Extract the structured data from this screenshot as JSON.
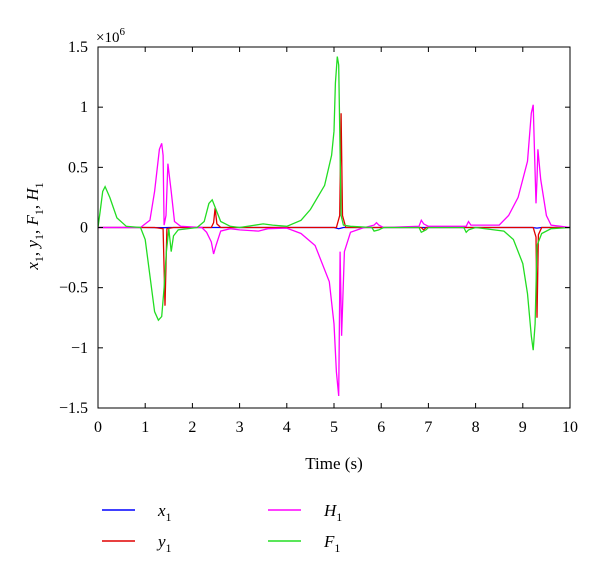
{
  "chart_data": {
    "type": "line",
    "xlabel": "Time (s)",
    "ylabel_parts": [
      {
        "base": "x",
        "sub": "1",
        "sep": ", "
      },
      {
        "base": "y",
        "sub": "1",
        "sep": ", "
      },
      {
        "base": "F",
        "sub": "1",
        "sep": ", "
      },
      {
        "base": "H",
        "sub": "1",
        "sep": ""
      }
    ],
    "scale_multiplier": {
      "base": "×10",
      "exp": "6"
    },
    "xlim": [
      0,
      10
    ],
    "ylim": [
      -1.5,
      1.5
    ],
    "xticks": [
      "0",
      "1",
      "2",
      "3",
      "4",
      "5",
      "6",
      "7",
      "8",
      "9",
      "10"
    ],
    "yticks": [
      "1.5",
      "1",
      "0.5",
      "0",
      "−0.5",
      "−1",
      "−1.5"
    ],
    "grid": false,
    "legend_position": "below-plot",
    "series": [
      {
        "name_base": "x",
        "name_sub": "1",
        "color": "#0000ff",
        "points": [
          [
            0,
            0
          ],
          [
            1,
            0
          ],
          [
            1.4,
            -0.002
          ],
          [
            1.5,
            0
          ],
          [
            2.5,
            0
          ],
          [
            5.0,
            0
          ],
          [
            5.1,
            -0.01
          ],
          [
            5.2,
            0
          ],
          [
            9.2,
            0
          ],
          [
            9.3,
            -0.005
          ],
          [
            9.4,
            0
          ],
          [
            10,
            0
          ]
        ]
      },
      {
        "name_base": "y",
        "name_sub": "1",
        "color": "#e00000",
        "points": [
          [
            0,
            0
          ],
          [
            1.2,
            0
          ],
          [
            1.38,
            -0.01
          ],
          [
            1.42,
            -0.65
          ],
          [
            1.46,
            -0.01
          ],
          [
            1.6,
            0
          ],
          [
            2.4,
            0
          ],
          [
            2.45,
            0.04
          ],
          [
            2.48,
            0.16
          ],
          [
            2.52,
            0.03
          ],
          [
            2.6,
            0
          ],
          [
            5.05,
            0
          ],
          [
            5.12,
            0.1
          ],
          [
            5.15,
            0.95
          ],
          [
            5.18,
            0.1
          ],
          [
            5.25,
            0
          ],
          [
            6.85,
            0
          ],
          [
            6.9,
            -0.02
          ],
          [
            6.95,
            0
          ],
          [
            9.22,
            0
          ],
          [
            9.28,
            -0.08
          ],
          [
            9.3,
            -0.75
          ],
          [
            9.33,
            -0.06
          ],
          [
            9.4,
            0
          ],
          [
            10,
            0
          ]
        ]
      },
      {
        "name_base": "H",
        "name_sub": "1",
        "color": "#ff00ff",
        "points": [
          [
            0,
            0
          ],
          [
            0.9,
            0
          ],
          [
            1.1,
            0.06
          ],
          [
            1.2,
            0.3
          ],
          [
            1.3,
            0.65
          ],
          [
            1.35,
            0.7
          ],
          [
            1.38,
            0.6
          ],
          [
            1.4,
            0.02
          ],
          [
            1.44,
            0.1
          ],
          [
            1.48,
            0.53
          ],
          [
            1.55,
            0.3
          ],
          [
            1.62,
            0.05
          ],
          [
            1.75,
            0.01
          ],
          [
            2.2,
            0
          ],
          [
            2.3,
            -0.04
          ],
          [
            2.4,
            -0.12
          ],
          [
            2.45,
            -0.22
          ],
          [
            2.5,
            -0.15
          ],
          [
            2.6,
            -0.03
          ],
          [
            2.8,
            -0.01
          ],
          [
            3.0,
            -0.02
          ],
          [
            3.4,
            -0.03
          ],
          [
            3.6,
            -0.01
          ],
          [
            4.0,
            -0.005
          ],
          [
            4.3,
            -0.05
          ],
          [
            4.6,
            -0.15
          ],
          [
            4.9,
            -0.45
          ],
          [
            5.0,
            -0.8
          ],
          [
            5.05,
            -1.2
          ],
          [
            5.1,
            -1.4
          ],
          [
            5.13,
            -0.2
          ],
          [
            5.16,
            -0.9
          ],
          [
            5.22,
            -0.2
          ],
          [
            5.35,
            -0.04
          ],
          [
            5.6,
            -0.005
          ],
          [
            5.85,
            0.02
          ],
          [
            5.9,
            0.04
          ],
          [
            5.95,
            0.02
          ],
          [
            6.05,
            0
          ],
          [
            6.8,
            0.01
          ],
          [
            6.85,
            0.06
          ],
          [
            6.9,
            0.03
          ],
          [
            7.0,
            0.01
          ],
          [
            7.8,
            0.01
          ],
          [
            7.85,
            0.05
          ],
          [
            7.9,
            0.02
          ],
          [
            8.5,
            0.02
          ],
          [
            8.7,
            0.1
          ],
          [
            8.9,
            0.25
          ],
          [
            9.1,
            0.55
          ],
          [
            9.18,
            0.95
          ],
          [
            9.22,
            1.02
          ],
          [
            9.25,
            0.6
          ],
          [
            9.28,
            0.2
          ],
          [
            9.3,
            0.4
          ],
          [
            9.32,
            0.65
          ],
          [
            9.38,
            0.4
          ],
          [
            9.5,
            0.1
          ],
          [
            9.6,
            0.02
          ],
          [
            9.8,
            0.01
          ],
          [
            10,
            0
          ]
        ]
      },
      {
        "name_base": "F",
        "name_sub": "1",
        "color": "#22dd22",
        "points": [
          [
            0,
            0
          ],
          [
            0.05,
            0.15
          ],
          [
            0.1,
            0.3
          ],
          [
            0.15,
            0.34
          ],
          [
            0.25,
            0.25
          ],
          [
            0.4,
            0.08
          ],
          [
            0.6,
            0.01
          ],
          [
            0.9,
            0
          ],
          [
            1.0,
            -0.1
          ],
          [
            1.1,
            -0.4
          ],
          [
            1.2,
            -0.7
          ],
          [
            1.28,
            -0.77
          ],
          [
            1.35,
            -0.74
          ],
          [
            1.4,
            -0.5
          ],
          [
            1.45,
            -0.2
          ],
          [
            1.5,
            -0.01
          ],
          [
            1.55,
            -0.2
          ],
          [
            1.6,
            -0.07
          ],
          [
            1.7,
            -0.02
          ],
          [
            2.1,
            0
          ],
          [
            2.25,
            0.05
          ],
          [
            2.35,
            0.2
          ],
          [
            2.42,
            0.23
          ],
          [
            2.5,
            0.15
          ],
          [
            2.6,
            0.05
          ],
          [
            2.8,
            0.01
          ],
          [
            3.0,
            0
          ],
          [
            3.5,
            0.03
          ],
          [
            3.7,
            0.02
          ],
          [
            4.0,
            0.01
          ],
          [
            4.3,
            0.06
          ],
          [
            4.5,
            0.15
          ],
          [
            4.8,
            0.35
          ],
          [
            4.95,
            0.6
          ],
          [
            5.0,
            0.8
          ],
          [
            5.03,
            1.2
          ],
          [
            5.07,
            1.42
          ],
          [
            5.1,
            1.35
          ],
          [
            5.15,
            0.1
          ],
          [
            5.2,
            0.02
          ],
          [
            5.35,
            0.01
          ],
          [
            5.8,
            0
          ],
          [
            5.85,
            -0.03
          ],
          [
            5.95,
            -0.02
          ],
          [
            6.05,
            0
          ],
          [
            6.8,
            0
          ],
          [
            6.85,
            -0.04
          ],
          [
            6.95,
            -0.02
          ],
          [
            7.0,
            0
          ],
          [
            7.75,
            0
          ],
          [
            7.8,
            -0.04
          ],
          [
            7.85,
            -0.02
          ],
          [
            8.0,
            0
          ],
          [
            8.6,
            -0.03
          ],
          [
            8.8,
            -0.1
          ],
          [
            9.0,
            -0.3
          ],
          [
            9.1,
            -0.55
          ],
          [
            9.18,
            -0.9
          ],
          [
            9.22,
            -1.02
          ],
          [
            9.26,
            -0.8
          ],
          [
            9.3,
            -0.15
          ],
          [
            9.4,
            -0.05
          ],
          [
            9.6,
            -0.01
          ],
          [
            10,
            0
          ]
        ]
      }
    ]
  }
}
